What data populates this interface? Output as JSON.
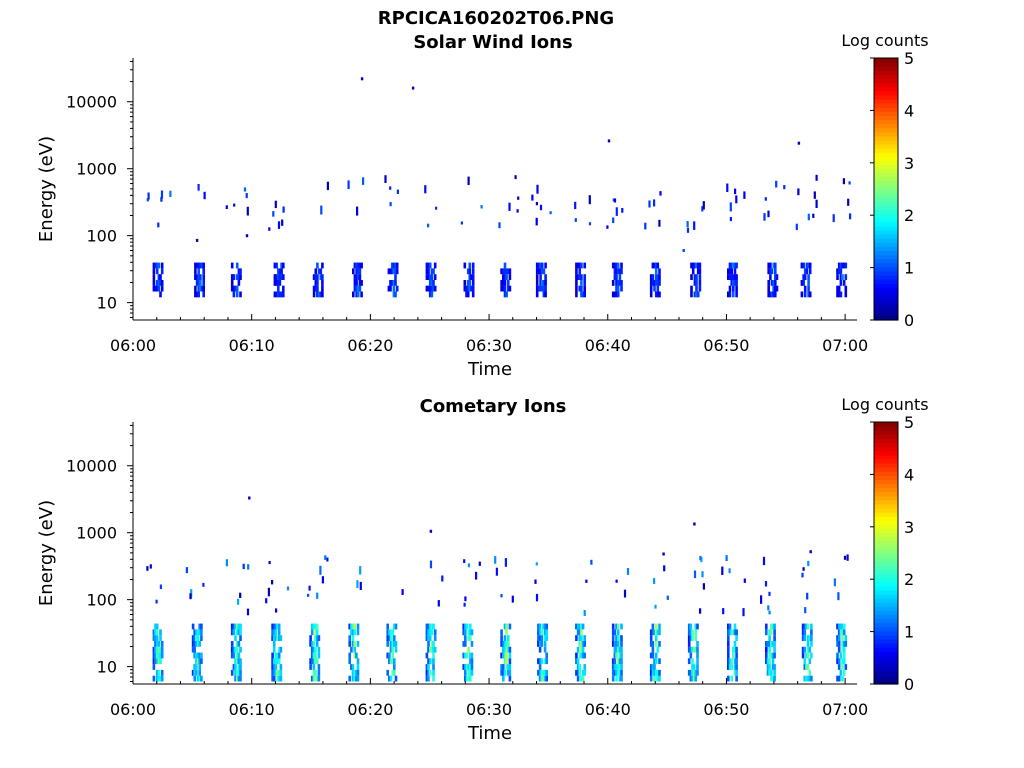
{
  "figure": {
    "title": "RPCICA160202T06.PNG"
  },
  "chart_data": [
    {
      "type": "heatmap",
      "title": "Solar Wind Ions",
      "xlabel": "Time",
      "ylabel": "Energy (eV)",
      "x_ticks": [
        "06:00",
        "06:10",
        "06:20",
        "06:30",
        "06:40",
        "06:50",
        "07:00"
      ],
      "x_range_minutes": [
        0,
        61
      ],
      "y_ticks": [
        "10",
        "100",
        "1000",
        "10000"
      ],
      "y_scale": "log",
      "y_range": [
        5.5,
        45000
      ],
      "colorbar": {
        "label": "Log counts",
        "ticks": [
          "0",
          "1",
          "2",
          "3",
          "4",
          "5"
        ],
        "range": [
          0,
          5
        ],
        "colormap": "jet"
      },
      "grid": false,
      "low_energy_band": {
        "energy_range": [
          12,
          38
        ],
        "sweep_minutes": [
          2.0,
          5.5,
          8.6,
          12.2,
          15.5,
          18.8,
          21.8,
          25.0,
          28.2,
          31.3,
          34.3,
          37.6,
          40.7,
          43.9,
          47.3,
          50.4,
          53.8,
          56.6,
          59.6
        ],
        "peak_log_counts": 1.3
      },
      "high_energy_band": {
        "energy_range": [
          120,
          800
        ],
        "peak_log_counts": 1.0
      },
      "isolated_points": [
        {
          "minute": 19.2,
          "energy": 22000,
          "log_counts": 0.3
        },
        {
          "minute": 23.5,
          "energy": 16000,
          "log_counts": 0.3
        },
        {
          "minute": 40.0,
          "energy": 2600,
          "log_counts": 0.3
        },
        {
          "minute": 56.0,
          "energy": 2400,
          "log_counts": 0.3
        },
        {
          "minute": 5.3,
          "energy": 85,
          "log_counts": 0.3
        },
        {
          "minute": 9.5,
          "energy": 100,
          "log_counts": 0.3
        },
        {
          "minute": 46.3,
          "energy": 60,
          "log_counts": 1.0
        }
      ]
    },
    {
      "type": "heatmap",
      "title": "Cometary Ions",
      "xlabel": "Time",
      "ylabel": "Energy (eV)",
      "x_ticks": [
        "06:00",
        "06:10",
        "06:20",
        "06:30",
        "06:40",
        "06:50",
        "07:00"
      ],
      "x_range_minutes": [
        0,
        61
      ],
      "y_ticks": [
        "10",
        "100",
        "1000",
        "10000"
      ],
      "y_scale": "log",
      "y_range": [
        5.5,
        45000
      ],
      "colorbar": {
        "label": "Log counts",
        "ticks": [
          "0",
          "1",
          "2",
          "3",
          "4",
          "5"
        ],
        "range": [
          0,
          5
        ],
        "colormap": "jet"
      },
      "grid": false,
      "low_energy_band": {
        "energy_range": [
          6,
          42
        ],
        "sweep_minutes": [
          2.0,
          5.3,
          8.6,
          12.0,
          15.2,
          18.5,
          21.7,
          25.0,
          28.1,
          31.3,
          34.4,
          37.6,
          40.7,
          43.9,
          47.1,
          50.4,
          53.6,
          56.7,
          59.6
        ],
        "peak_log_counts": 2.8
      },
      "high_energy_band": {
        "energy_range": [
          60,
          450
        ],
        "peak_log_counts": 1.3
      },
      "isolated_points": [
        {
          "minute": 9.7,
          "energy": 3300,
          "log_counts": 0.3
        },
        {
          "minute": 25.0,
          "energy": 1050,
          "log_counts": 0.3
        },
        {
          "minute": 47.2,
          "energy": 1350,
          "log_counts": 0.3
        },
        {
          "minute": 44.6,
          "energy": 480,
          "log_counts": 0.3
        },
        {
          "minute": 57.0,
          "energy": 520,
          "log_counts": 0.3
        }
      ]
    }
  ]
}
